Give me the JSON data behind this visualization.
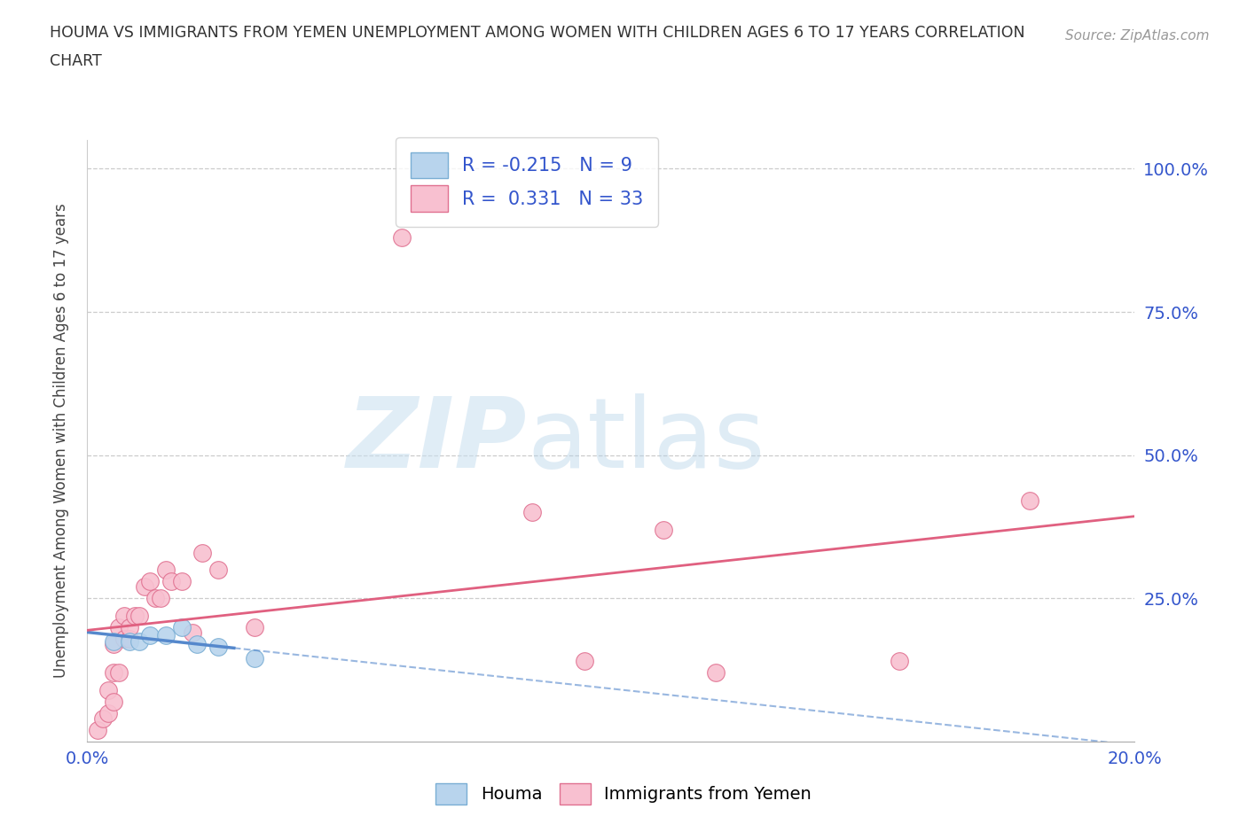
{
  "title_line1": "HOUMA VS IMMIGRANTS FROM YEMEN UNEMPLOYMENT AMONG WOMEN WITH CHILDREN AGES 6 TO 17 YEARS CORRELATION",
  "title_line2": "CHART",
  "source_text": "Source: ZipAtlas.com",
  "ylabel": "Unemployment Among Women with Children Ages 6 to 17 years",
  "xlim": [
    0.0,
    0.2
  ],
  "ylim": [
    0.0,
    1.05
  ],
  "xtick_vals": [
    0.0,
    0.2
  ],
  "xtick_labels": [
    "0.0%",
    "20.0%"
  ],
  "ytick_vals": [
    0.25,
    0.5,
    0.75,
    1.0
  ],
  "ytick_labels": [
    "25.0%",
    "50.0%",
    "75.0%",
    "100.0%"
  ],
  "watermark_zip": "ZIP",
  "watermark_atlas": "atlas",
  "houma_R": -0.215,
  "houma_N": 9,
  "yemen_R": 0.331,
  "yemen_N": 33,
  "houma_scatter_color": "#b8d4ed",
  "houma_edge_color": "#7aaed4",
  "houma_line_color": "#5588cc",
  "yemen_scatter_color": "#f8c0d0",
  "yemen_edge_color": "#e07090",
  "yemen_line_color": "#e06080",
  "legend_text_color": "#3355cc",
  "background_color": "#ffffff",
  "houma_x": [
    0.005,
    0.008,
    0.01,
    0.012,
    0.015,
    0.018,
    0.021,
    0.025,
    0.032
  ],
  "houma_y": [
    0.175,
    0.175,
    0.175,
    0.185,
    0.185,
    0.2,
    0.17,
    0.165,
    0.145
  ],
  "yemen_x": [
    0.002,
    0.003,
    0.004,
    0.004,
    0.005,
    0.005,
    0.005,
    0.006,
    0.006,
    0.007,
    0.007,
    0.008,
    0.008,
    0.009,
    0.01,
    0.011,
    0.012,
    0.013,
    0.014,
    0.015,
    0.016,
    0.018,
    0.02,
    0.022,
    0.025,
    0.032,
    0.06,
    0.085,
    0.095,
    0.11,
    0.12,
    0.155,
    0.18
  ],
  "yemen_y": [
    0.02,
    0.04,
    0.05,
    0.09,
    0.07,
    0.12,
    0.17,
    0.12,
    0.2,
    0.18,
    0.22,
    0.18,
    0.2,
    0.22,
    0.22,
    0.27,
    0.28,
    0.25,
    0.25,
    0.3,
    0.28,
    0.28,
    0.19,
    0.33,
    0.3,
    0.2,
    0.88,
    0.4,
    0.14,
    0.37,
    0.12,
    0.14,
    0.42
  ]
}
